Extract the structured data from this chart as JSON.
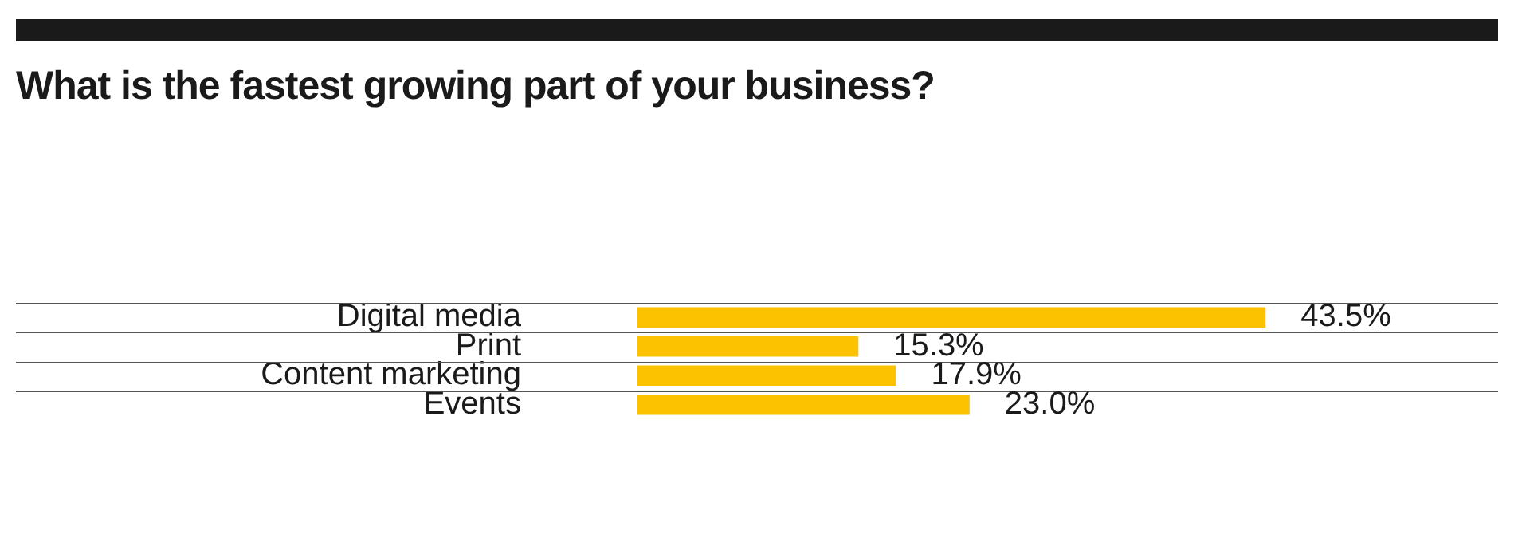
{
  "chart_data": {
    "type": "bar",
    "orientation": "horizontal",
    "title": "What is the fastest growing part of your business?",
    "categories": [
      "Digital media",
      "Print",
      "Content marketing",
      "Events"
    ],
    "values": [
      43.5,
      15.3,
      17.9,
      23.0
    ],
    "value_labels": [
      "43.5%",
      "15.3%",
      "17.9%",
      "23.0%"
    ],
    "color": "#fcc200",
    "grid": "y",
    "legend": false
  }
}
